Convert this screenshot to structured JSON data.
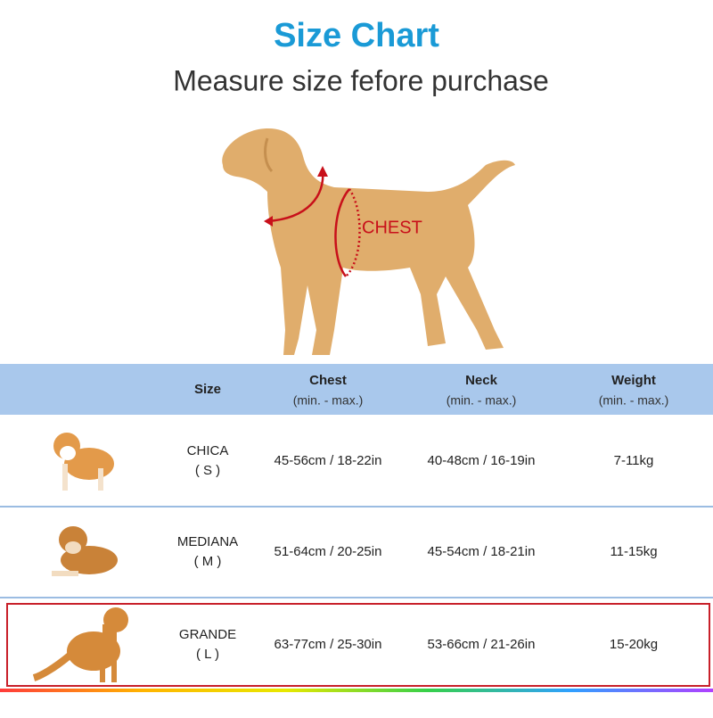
{
  "header": {
    "title": "Size Chart",
    "subtitle": "Measure size fefore purchase"
  },
  "diagram": {
    "label": "CHEST"
  },
  "table": {
    "columns": [
      {
        "name": "Size"
      },
      {
        "name": "Chest",
        "sub": "(min. - max.)"
      },
      {
        "name": "Neck",
        "sub": "(min. - max.)"
      },
      {
        "name": "Weight",
        "sub": "(min. - max.)"
      }
    ],
    "rows": [
      {
        "size": "CHICA",
        "code": "( S )",
        "chest": "45-56cm / 18-22in",
        "neck": "40-48cm / 16-19in",
        "weight": "7-11kg"
      },
      {
        "size": "MEDIANA",
        "code": "( M )",
        "chest": "51-64cm / 20-25in",
        "neck": "45-54cm / 18-21in",
        "weight": "11-15kg"
      },
      {
        "size": "GRANDE",
        "code": "( L )",
        "chest": "63-77cm / 25-30in",
        "neck": "53-66cm / 21-26in",
        "weight": "15-20kg"
      }
    ]
  }
}
